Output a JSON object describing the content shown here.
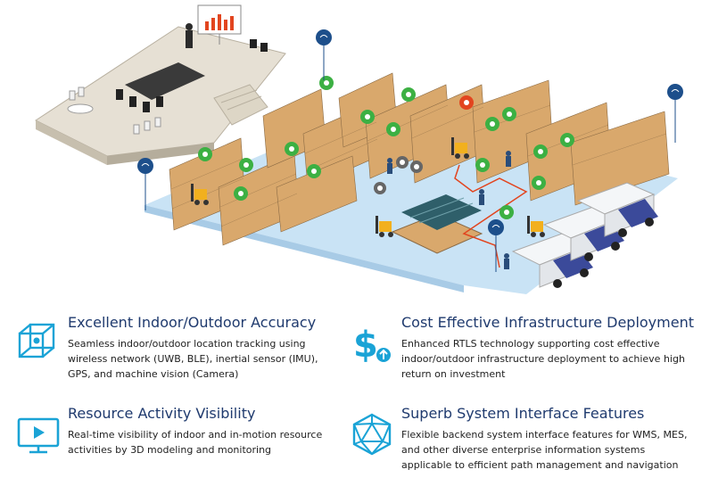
{
  "features": [
    {
      "title": "Excellent Indoor/Outdoor Accuracy",
      "description": "Seamless indoor/outdoor location tracking using wireless network (UWB, BLE), inertial sensor (IMU), GPS, and machine vision (Camera)",
      "icon": "cube-nodes-icon"
    },
    {
      "title": "Cost Effective Infrastructure Deployment",
      "description": "Enhanced RTLS technology supporting cost effective indoor/outdoor infrastructure deployment to achieve high return on investment",
      "icon": "dollar-upload-icon"
    },
    {
      "title": "Resource Activity Visibility",
      "description": "Real-time visibility of indoor and in-motion resource activities by 3D modeling and monitoring",
      "icon": "monitor-play-icon"
    },
    {
      "title": "Superb System Interface Features",
      "description": "Flexible backend system interface features for WMS, MES, and other diverse enterprise information systems applicable to efficient path management and navigation",
      "icon": "icosahedron-icon"
    }
  ],
  "colors": {
    "title": "#1f3a6e",
    "icon": "#1aa3d6",
    "floor": "#c9e3f5",
    "shelf": "#d9a86c",
    "tag_green": "#3cb043",
    "tag_red": "#e2451f",
    "anchor": "#1d4f8b",
    "truck": "#3b4a9a",
    "path": "#e2451f"
  }
}
